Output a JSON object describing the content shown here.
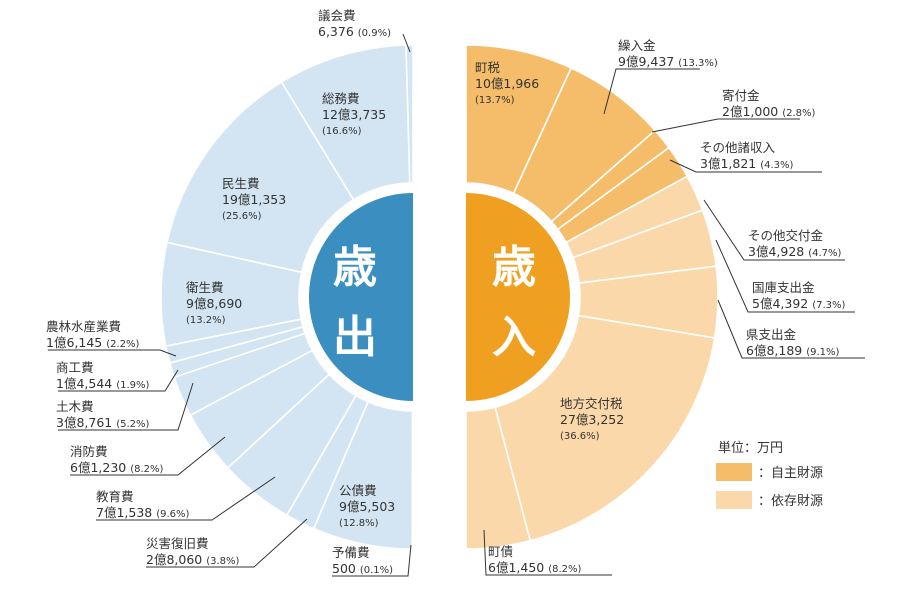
{
  "chart_data": {
    "type": "pie",
    "unit": "単位：万円",
    "expenditure": {
      "title_top": "歳",
      "title_bottom": "出",
      "color": "#d3e5f2",
      "center_color": "#3b8fc0",
      "slices": [
        {
          "name": "議会費",
          "amount": "6,376",
          "pct": "(0.9%)",
          "value": 0.9
        },
        {
          "name": "総務費",
          "amount": "12億3,735",
          "pct": "(16.6%)",
          "value": 16.6
        },
        {
          "name": "民生費",
          "amount": "19億1,353",
          "pct": "(25.6%)",
          "value": 25.6
        },
        {
          "name": "衛生費",
          "amount": "9億8,690",
          "pct": "(13.2%)",
          "value": 13.2
        },
        {
          "name": "農林水産業費",
          "amount": "1億6,145",
          "pct": "(2.2%)",
          "value": 2.2
        },
        {
          "name": "商工費",
          "amount": "1億4,544",
          "pct": "(1.9%)",
          "value": 1.9
        },
        {
          "name": "土木費",
          "amount": "3億8,761",
          "pct": "(5.2%)",
          "value": 5.2
        },
        {
          "name": "消防費",
          "amount": "6億1,230",
          "pct": "(8.2%)",
          "value": 8.2
        },
        {
          "name": "教育費",
          "amount": "7億1,538",
          "pct": "(9.6%)",
          "value": 9.6
        },
        {
          "name": "災害復旧費",
          "amount": "2億8,060",
          "pct": "(3.8%)",
          "value": 3.8
        },
        {
          "name": "公債費",
          "amount": "9億5,503",
          "pct": "(12.8%)",
          "value": 12.8
        },
        {
          "name": "予備費",
          "amount": "500",
          "pct": "(0.1%)",
          "value": 0.1
        }
      ]
    },
    "revenue": {
      "title_top": "歳",
      "title_bottom": "入",
      "center_color": "#f0a020",
      "self_color": "#f5bd6a",
      "dependent_color": "#fad8aa",
      "slices": [
        {
          "name": "町税",
          "amount": "10億1,966",
          "pct": "(13.7%)",
          "value": 13.7,
          "kind": "self"
        },
        {
          "name": "繰入金",
          "amount": "9億9,437",
          "pct": "(13.3%)",
          "value": 13.3,
          "kind": "self"
        },
        {
          "name": "寄付金",
          "amount": "2億1,000",
          "pct": "(2.8%)",
          "value": 2.8,
          "kind": "self"
        },
        {
          "name": "その他諸収入",
          "amount": "3億1,821",
          "pct": "(4.3%)",
          "value": 4.3,
          "kind": "self"
        },
        {
          "name": "その他交付金",
          "amount": "3億4,928",
          "pct": "(4.7%)",
          "value": 4.7,
          "kind": "dependent"
        },
        {
          "name": "国庫支出金",
          "amount": "5億4,392",
          "pct": "(7.3%)",
          "value": 7.3,
          "kind": "dependent"
        },
        {
          "name": "県支出金",
          "amount": "6億8,189",
          "pct": "(9.1%)",
          "value": 9.1,
          "kind": "dependent"
        },
        {
          "name": "地方交付税",
          "amount": "27億3,252",
          "pct": "(36.6%)",
          "value": 36.6,
          "kind": "dependent"
        },
        {
          "name": "町債",
          "amount": "6億1,450",
          "pct": "(8.2%)",
          "value": 8.2,
          "kind": "dependent"
        }
      ]
    },
    "legend": [
      {
        "label": "：自主財源",
        "color": "#f5bd6a"
      },
      {
        "label": "：依存財源",
        "color": "#fad8aa"
      }
    ]
  }
}
